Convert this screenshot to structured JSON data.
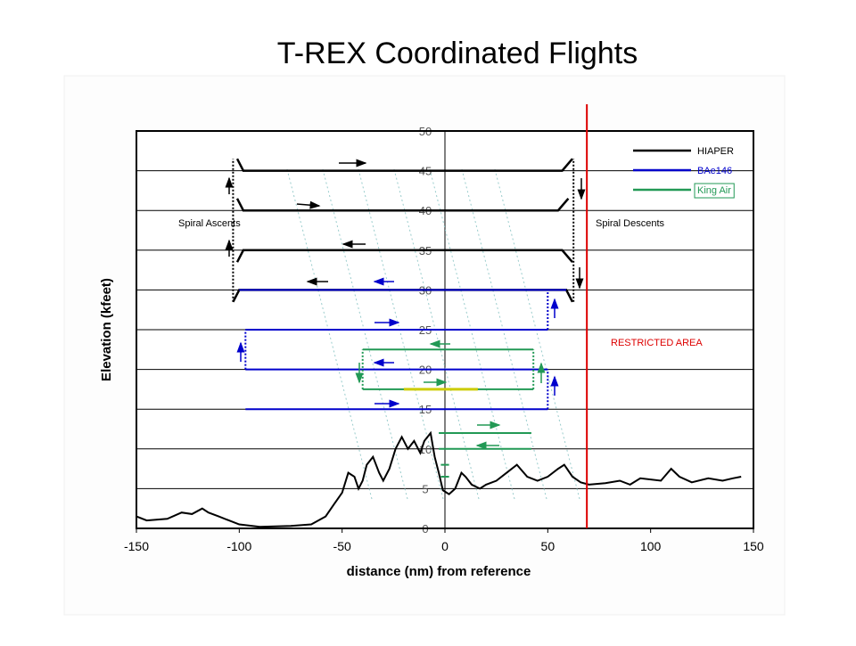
{
  "chart_data": {
    "type": "line",
    "title": "T-REX Coordinated Flights",
    "x_label": "distance (nm) from reference",
    "y_label": "Elevation (kfeet)",
    "xlim": [
      -150,
      150
    ],
    "xticks": [
      -150,
      -100,
      -50,
      0,
      50,
      100,
      150
    ],
    "ylim": [
      0,
      50
    ],
    "yticks": [
      0,
      5,
      10,
      15,
      20,
      25,
      30,
      35,
      40,
      45,
      50
    ],
    "grid": true,
    "legend": "top-right",
    "series": [
      {
        "name": "HIAPER",
        "color": "#000000",
        "x": [
          -101,
          -98,
          57,
          62,
          null,
          -101,
          -98,
          55,
          60,
          null,
          -101,
          -98,
          57,
          62,
          null,
          -103,
          -100,
          59,
          62
        ],
        "values": [
          46.5,
          45,
          45,
          46.5,
          null,
          41.5,
          40,
          40,
          41.5,
          null,
          33.5,
          35,
          35,
          33.5,
          null,
          28.5,
          30,
          30,
          28.5
        ]
      },
      {
        "name": "BAe146",
        "color": "#0000cc",
        "x": [
          -100,
          59,
          null,
          -97,
          50,
          null,
          -97,
          50,
          null,
          -97,
          50
        ],
        "values": [
          30,
          30,
          null,
          25,
          25,
          null,
          20,
          20,
          null,
          15,
          15
        ]
      },
      {
        "name": "King Air",
        "color": "#229955",
        "x": [
          -40,
          43,
          null,
          -40,
          43,
          null,
          -3,
          42,
          null,
          -3,
          42,
          null,
          -2,
          2,
          null,
          -2,
          2
        ],
        "values": [
          22.5,
          22.5,
          null,
          17.5,
          17.5,
          null,
          12,
          12,
          null,
          10,
          10,
          null,
          8,
          8,
          null,
          6.5,
          6.5
        ]
      }
    ],
    "segments": [
      {
        "color": "#000000",
        "dash": true,
        "x": [
          -103,
          -103
        ],
        "values": [
          28.5,
          46.5
        ]
      },
      {
        "color": "#000000",
        "dash": true,
        "x": [
          62.5,
          62.5
        ],
        "values": [
          28.5,
          46.5
        ]
      },
      {
        "color": "#0000cc",
        "dash": true,
        "x": [
          50,
          50
        ],
        "values": [
          25,
          30
        ]
      },
      {
        "color": "#0000cc",
        "dash": true,
        "x": [
          -97,
          -97
        ],
        "values": [
          20,
          25
        ]
      },
      {
        "color": "#0000cc",
        "dash": true,
        "x": [
          50,
          50
        ],
        "values": [
          15,
          20
        ]
      },
      {
        "color": "#229955",
        "dash": true,
        "x": [
          -40,
          -40
        ],
        "values": [
          17.5,
          22.5
        ]
      },
      {
        "color": "#229955",
        "dash": true,
        "x": [
          43,
          43
        ],
        "values": [
          17.5,
          22.5
        ]
      },
      {
        "color": "#cccc00",
        "dash": false,
        "x": [
          -20,
          16
        ],
        "values": [
          17.5,
          17.5
        ]
      }
    ],
    "terrain": {
      "color": "#000000",
      "x": [
        -150,
        -145,
        -135,
        -128,
        -123,
        -118,
        -115,
        -110,
        -105,
        -100,
        -90,
        -75,
        -65,
        -58,
        -54,
        -50,
        -47,
        -44,
        -42,
        -40,
        -38,
        -35,
        -32,
        -30,
        -27,
        -24,
        -21,
        -18,
        -15,
        -12,
        -10,
        -7,
        -5,
        -3,
        -1,
        2,
        5,
        8,
        10,
        13,
        17,
        20,
        25,
        30,
        35,
        40,
        45,
        50,
        55,
        58,
        62,
        66,
        70,
        78,
        85,
        90,
        95,
        105,
        110,
        114,
        120,
        128,
        135,
        140,
        144
      ],
      "values": [
        1.5,
        1,
        1.2,
        2,
        1.8,
        2.5,
        2,
        1.5,
        1,
        0.5,
        0.2,
        0.3,
        0.5,
        1.5,
        3,
        4.5,
        7,
        6.5,
        5,
        6,
        8,
        9,
        7,
        6,
        7.5,
        10,
        11.5,
        10,
        11,
        9.5,
        11,
        12,
        9,
        7,
        4.8,
        4.3,
        5,
        7,
        6.5,
        5.5,
        5,
        5.5,
        6,
        7,
        8,
        6.5,
        6,
        6.5,
        7.5,
        8,
        6.5,
        5.8,
        5.5,
        5.7,
        6,
        5.5,
        6.3,
        6,
        7.5,
        6.5,
        5.8,
        6.3,
        6,
        6.3,
        6.5
      ]
    },
    "restricted_x": 69,
    "restricted_color": "#dd0000",
    "annotations": {
      "ascents": "Spiral Ascents",
      "descents": "Spiral Descents",
      "restricted": "RESTRICTED AREA"
    }
  }
}
